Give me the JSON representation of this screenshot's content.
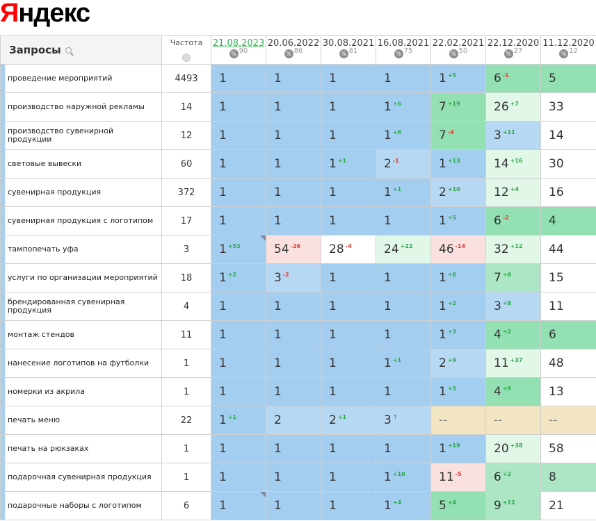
{
  "logo": {
    "first": "Я",
    "rest": "ндекс"
  },
  "header": {
    "query_label": "Запросы",
    "freq_label": "Частота",
    "dates": [
      {
        "date": "21.08.2023",
        "visibility": "90"
      },
      {
        "date": "20.06.2022",
        "visibility": "86"
      },
      {
        "date": "30.08.2021",
        "visibility": "81"
      },
      {
        "date": "16.08.2021",
        "visibility": "75"
      },
      {
        "date": "22.02.2021",
        "visibility": "50"
      },
      {
        "date": "22.12.2020",
        "visibility": "27"
      },
      {
        "date": "11.12.2020",
        "visibility": "12"
      }
    ]
  },
  "rows": [
    {
      "query": "проведение мероприятий",
      "freq": "4493",
      "cells": [
        {
          "v": "1",
          "c": "blue"
        },
        {
          "v": "1",
          "c": "blue"
        },
        {
          "v": "1",
          "c": "blue"
        },
        {
          "v": "1",
          "c": "blue"
        },
        {
          "v": "1",
          "d": "+5",
          "c": "blue"
        },
        {
          "v": "6",
          "d": "-1",
          "c": "green"
        },
        {
          "v": "5",
          "c": "green"
        }
      ]
    },
    {
      "query": "производство наружной рекламы",
      "freq": "14",
      "cells": [
        {
          "v": "1",
          "c": "blue"
        },
        {
          "v": "1",
          "c": "blue"
        },
        {
          "v": "1",
          "c": "blue"
        },
        {
          "v": "1",
          "d": "+6",
          "c": "blue"
        },
        {
          "v": "7",
          "d": "+19",
          "c": "green"
        },
        {
          "v": "26",
          "d": "+7",
          "c": "lgreen"
        },
        {
          "v": "33",
          "c": "white"
        }
      ]
    },
    {
      "query": "производство сувенирной продукции",
      "freq": "12",
      "cells": [
        {
          "v": "1",
          "c": "blue"
        },
        {
          "v": "1",
          "c": "blue"
        },
        {
          "v": "1",
          "c": "blue"
        },
        {
          "v": "1",
          "d": "+6",
          "c": "blue"
        },
        {
          "v": "7",
          "d": "-4",
          "c": "green"
        },
        {
          "v": "3",
          "d": "+11",
          "c": "lblue"
        },
        {
          "v": "14",
          "c": "white"
        }
      ]
    },
    {
      "query": "световые вывески",
      "freq": "60",
      "cells": [
        {
          "v": "1",
          "c": "blue"
        },
        {
          "v": "1",
          "c": "blue"
        },
        {
          "v": "1",
          "d": "+1",
          "c": "blue"
        },
        {
          "v": "2",
          "d": "-1",
          "c": "lblue"
        },
        {
          "v": "1",
          "d": "+13",
          "c": "blue"
        },
        {
          "v": "14",
          "d": "+16",
          "c": "lgreen"
        },
        {
          "v": "30",
          "c": "white"
        }
      ]
    },
    {
      "query": "сувенирная продукция",
      "freq": "372",
      "cells": [
        {
          "v": "1",
          "c": "blue"
        },
        {
          "v": "1",
          "c": "blue"
        },
        {
          "v": "1",
          "c": "blue"
        },
        {
          "v": "1",
          "d": "+1",
          "c": "blue"
        },
        {
          "v": "2",
          "d": "+10",
          "c": "lblue"
        },
        {
          "v": "12",
          "d": "+4",
          "c": "lgreen"
        },
        {
          "v": "16",
          "c": "white"
        }
      ]
    },
    {
      "query": "сувенирная продукция с логотипом",
      "freq": "17",
      "cells": [
        {
          "v": "1",
          "c": "blue"
        },
        {
          "v": "1",
          "c": "blue"
        },
        {
          "v": "1",
          "c": "blue"
        },
        {
          "v": "1",
          "c": "blue"
        },
        {
          "v": "1",
          "d": "+5",
          "c": "blue"
        },
        {
          "v": "6",
          "d": "-2",
          "c": "green"
        },
        {
          "v": "4",
          "c": "green"
        }
      ]
    },
    {
      "query": "тампопечать уфа",
      "freq": "3",
      "cells": [
        {
          "v": "1",
          "d": "+53",
          "c": "blue",
          "tri": true
        },
        {
          "v": "54",
          "d": "-26",
          "c": "pink"
        },
        {
          "v": "28",
          "d": "-4",
          "c": "white"
        },
        {
          "v": "24",
          "d": "+22",
          "c": "lgreen"
        },
        {
          "v": "46",
          "d": "-14",
          "c": "pink"
        },
        {
          "v": "32",
          "d": "+12",
          "c": "lgreen"
        },
        {
          "v": "44",
          "c": "white"
        }
      ]
    },
    {
      "query": "услуги по организации мероприятий",
      "freq": "18",
      "cells": [
        {
          "v": "1",
          "d": "+2",
          "c": "blue"
        },
        {
          "v": "3",
          "d": "-2",
          "c": "lblue"
        },
        {
          "v": "1",
          "c": "blue"
        },
        {
          "v": "1",
          "c": "blue"
        },
        {
          "v": "1",
          "d": "+6",
          "c": "blue"
        },
        {
          "v": "7",
          "d": "+8",
          "c": "mgreen"
        },
        {
          "v": "15",
          "c": "white"
        }
      ]
    },
    {
      "query": "брендированная сувенирная продукция",
      "freq": "4",
      "cells": [
        {
          "v": "1",
          "c": "blue"
        },
        {
          "v": "1",
          "c": "blue"
        },
        {
          "v": "1",
          "c": "blue"
        },
        {
          "v": "1",
          "c": "blue"
        },
        {
          "v": "1",
          "d": "+2",
          "c": "blue"
        },
        {
          "v": "3",
          "d": "+8",
          "c": "lblue"
        },
        {
          "v": "11",
          "c": "white"
        }
      ]
    },
    {
      "query": "монтаж стендов",
      "freq": "11",
      "cells": [
        {
          "v": "1",
          "c": "blue"
        },
        {
          "v": "1",
          "c": "blue"
        },
        {
          "v": "1",
          "c": "blue"
        },
        {
          "v": "1",
          "c": "blue"
        },
        {
          "v": "1",
          "d": "+3",
          "c": "blue"
        },
        {
          "v": "4",
          "d": "+2",
          "c": "green"
        },
        {
          "v": "6",
          "c": "green"
        }
      ]
    },
    {
      "query": "нанесение логотипов на футболки",
      "freq": "1",
      "cells": [
        {
          "v": "1",
          "c": "blue"
        },
        {
          "v": "1",
          "c": "blue"
        },
        {
          "v": "1",
          "c": "blue"
        },
        {
          "v": "1",
          "d": "+1",
          "c": "blue"
        },
        {
          "v": "2",
          "d": "+9",
          "c": "lblue"
        },
        {
          "v": "11",
          "d": "+37",
          "c": "lgreen"
        },
        {
          "v": "48",
          "c": "white"
        }
      ]
    },
    {
      "query": "номерки из акрила",
      "freq": "1",
      "cells": [
        {
          "v": "1",
          "c": "blue"
        },
        {
          "v": "1",
          "c": "blue"
        },
        {
          "v": "1",
          "c": "blue"
        },
        {
          "v": "1",
          "c": "blue"
        },
        {
          "v": "1",
          "d": "+3",
          "c": "blue"
        },
        {
          "v": "4",
          "d": "+9",
          "c": "green"
        },
        {
          "v": "13",
          "c": "white"
        }
      ]
    },
    {
      "query": "печать меню",
      "freq": "22",
      "cells": [
        {
          "v": "1",
          "d": "+1",
          "c": "blue"
        },
        {
          "v": "2",
          "c": "lblue"
        },
        {
          "v": "2",
          "d": "+1",
          "c": "lblue"
        },
        {
          "v": "3",
          "d": "↑",
          "c": "lblue"
        },
        {
          "v": "--",
          "c": "tan"
        },
        {
          "v": "--",
          "c": "tan"
        },
        {
          "v": "--",
          "c": "tan"
        }
      ]
    },
    {
      "query": "печать на рюкзаках",
      "freq": "1",
      "cells": [
        {
          "v": "1",
          "c": "blue"
        },
        {
          "v": "1",
          "c": "blue"
        },
        {
          "v": "1",
          "c": "blue"
        },
        {
          "v": "1",
          "c": "blue"
        },
        {
          "v": "1",
          "d": "+19",
          "c": "blue"
        },
        {
          "v": "20",
          "d": "+38",
          "c": "lgreen"
        },
        {
          "v": "58",
          "c": "white"
        }
      ]
    },
    {
      "query": "подарочная сувенирная продукция",
      "freq": "1",
      "cells": [
        {
          "v": "1",
          "c": "blue"
        },
        {
          "v": "1",
          "c": "blue"
        },
        {
          "v": "1",
          "c": "blue"
        },
        {
          "v": "1",
          "d": "+10",
          "c": "blue"
        },
        {
          "v": "11",
          "d": "-5",
          "c": "pink"
        },
        {
          "v": "6",
          "d": "+2",
          "c": "mgreen"
        },
        {
          "v": "8",
          "c": "mgreen"
        }
      ]
    },
    {
      "query": "подарочные наборы с логотипом",
      "freq": "6",
      "cells": [
        {
          "v": "1",
          "c": "blue",
          "tri": true
        },
        {
          "v": "1",
          "c": "blue"
        },
        {
          "v": "1",
          "c": "blue"
        },
        {
          "v": "1",
          "d": "+4",
          "c": "blue"
        },
        {
          "v": "5",
          "d": "+4",
          "c": "green"
        },
        {
          "v": "9",
          "d": "+12",
          "c": "mgreen"
        },
        {
          "v": "21",
          "c": "white"
        }
      ]
    }
  ]
}
